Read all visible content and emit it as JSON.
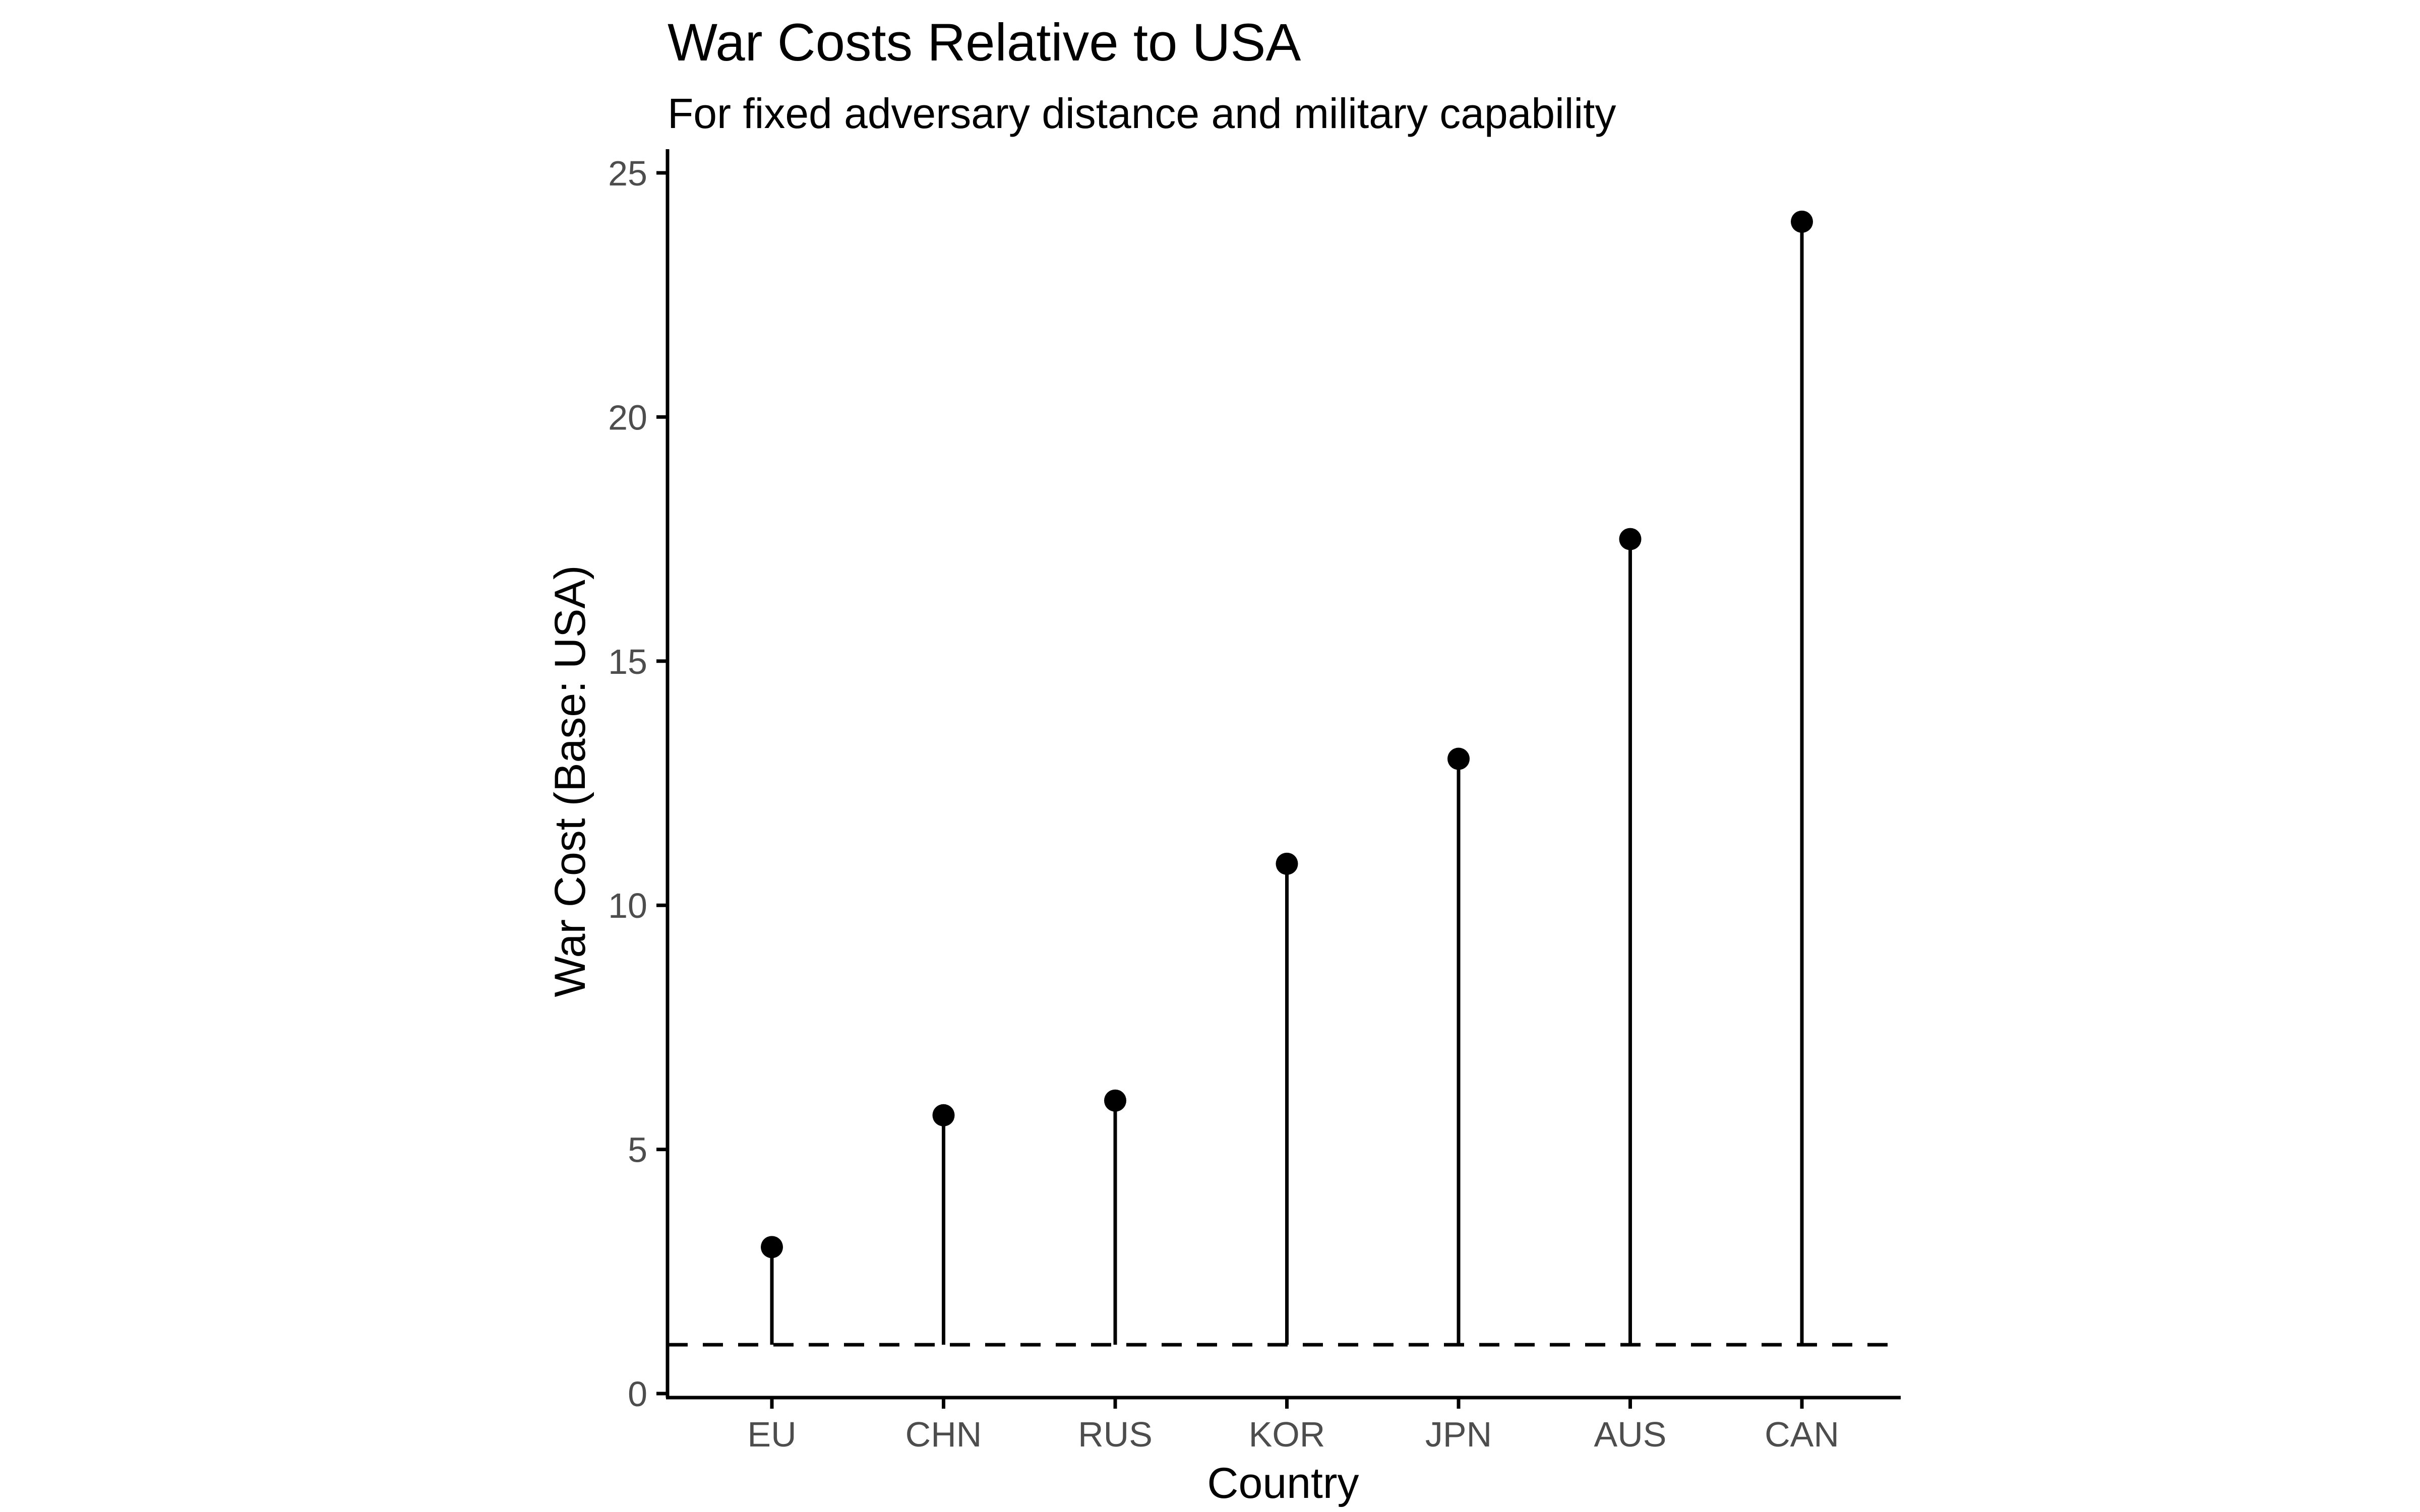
{
  "chart_data": {
    "type": "lollipop",
    "title": "War Costs Relative to USA",
    "subtitle": "For fixed adversary distance and military capability",
    "xlabel": "Country",
    "ylabel": "War Cost (Base: USA)",
    "categories": [
      "EU",
      "CHN",
      "RUS",
      "KOR",
      "JPN",
      "AUS",
      "CAN"
    ],
    "values": [
      3.0,
      5.7,
      6.0,
      10.85,
      13.0,
      17.5,
      24.0
    ],
    "baseline": 1,
    "baseline_style": "dashed",
    "ylim": [
      0,
      25
    ],
    "yticks": [
      0,
      5,
      10,
      15,
      20,
      25
    ],
    "ytick_labels": [
      "0",
      "5",
      "10",
      "15",
      "20",
      "25"
    ],
    "grid": false,
    "legend": "none",
    "colors": {
      "line": "#000000",
      "point": "#000000",
      "tick_text": "#4d4d4d"
    }
  }
}
